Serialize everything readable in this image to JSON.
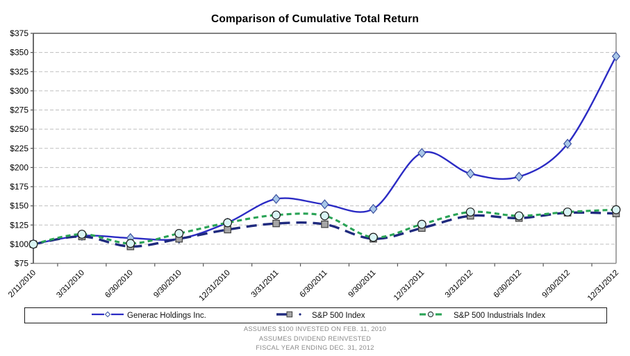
{
  "title": "Comparison of Cumulative Total Return",
  "chart_data": {
    "type": "line",
    "title": "Comparison of Cumulative Total Return",
    "categories": [
      "2/11/2010",
      "3/31/2010",
      "6/30/2010",
      "9/30/2010",
      "12/31/2010",
      "3/31/2011",
      "6/30/2011",
      "9/30/2011",
      "12/31/2011",
      "3/31/2012",
      "6/30/2012",
      "9/30/2012",
      "12/31/2012"
    ],
    "series": [
      {
        "name": "Generac Holdings Inc.",
        "values": [
          100,
          111,
          108,
          107,
          128,
          159,
          152,
          146,
          219,
          192,
          188,
          231,
          345
        ],
        "line_color": "#2B2BC4",
        "line_width": 2.4,
        "dash": "",
        "marker": "diamond",
        "marker_fill": "#A9C7E8",
        "marker_stroke": "#3A509E"
      },
      {
        "name": "S&P 500 Index",
        "values": [
          100,
          110,
          97,
          107,
          119,
          127,
          126,
          107,
          121,
          137,
          134,
          141,
          140
        ],
        "line_color": "#1F2A7E",
        "line_width": 3.4,
        "dash": "15 9",
        "marker": "square",
        "marker_fill": "#A6A6A6",
        "marker_stroke": "#3F3F3F"
      },
      {
        "name": "S&P 500 Industrials Index",
        "values": [
          100,
          113,
          101,
          114,
          128,
          138,
          137,
          109,
          126,
          142,
          137,
          142,
          145
        ],
        "line_color": "#2AA356",
        "line_width": 3.1,
        "dash": "7 5",
        "marker": "circle",
        "marker_fill": "#D9F4F4",
        "marker_stroke": "#1A1A1A"
      }
    ],
    "ylim": [
      75,
      375
    ],
    "ytick_step": 25,
    "ytick_labels": [
      "$375",
      "$350",
      "$325",
      "$300",
      "$275",
      "$250",
      "$225",
      "$200",
      "$175",
      "$150",
      "$125",
      "$100",
      "$75"
    ],
    "grid": "horizontal-dashed",
    "legend_position": "bottom"
  },
  "legend": {
    "items": [
      {
        "label": "Generac Holdings Inc."
      },
      {
        "label": "S&P 500 Index"
      },
      {
        "label": "S&P 500 Industrials Index"
      }
    ]
  },
  "footer": {
    "lines": [
      "ASSUMES $100 INVESTED ON FEB. 11, 2010",
      "ASSUMES DIVIDEND REINVESTED",
      "FISCAL YEAR ENDING DEC. 31, 2012"
    ]
  }
}
